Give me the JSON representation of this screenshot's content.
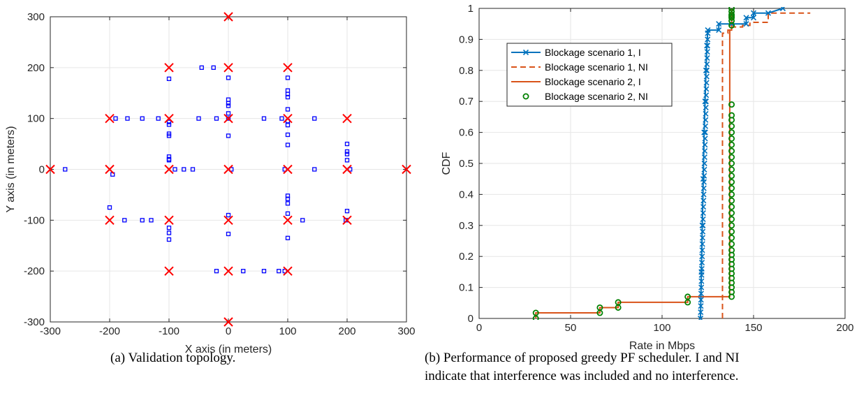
{
  "captions": {
    "a": "(a) Validation topology.",
    "b_line1": "(b) Performance of proposed greedy PF scheduler. I and NI",
    "b_line2": "indicate that interference was included and no interference."
  },
  "chart_data": [
    {
      "type": "scatter",
      "title": "",
      "xlabel": "X axis (in meters)",
      "ylabel": "Y axis (in meters)",
      "xlim": [
        -300,
        300
      ],
      "ylim": [
        -300,
        300
      ],
      "xticks": [
        -300,
        -200,
        -100,
        0,
        100,
        200,
        300
      ],
      "yticks": [
        -300,
        -200,
        -100,
        0,
        100,
        200,
        300
      ],
      "grid": true,
      "series": [
        {
          "marker": "x",
          "color": "#ff0000",
          "points": [
            [
              0,
              300
            ],
            [
              -100,
              200
            ],
            [
              0,
              200
            ],
            [
              100,
              200
            ],
            [
              -200,
              100
            ],
            [
              -100,
              100
            ],
            [
              0,
              100
            ],
            [
              100,
              100
            ],
            [
              200,
              100
            ],
            [
              -300,
              0
            ],
            [
              -200,
              0
            ],
            [
              -100,
              0
            ],
            [
              0,
              0
            ],
            [
              100,
              0
            ],
            [
              200,
              0
            ],
            [
              300,
              0
            ],
            [
              -200,
              -100
            ],
            [
              -100,
              -100
            ],
            [
              0,
              -100
            ],
            [
              100,
              -100
            ],
            [
              200,
              -100
            ],
            [
              -100,
              -200
            ],
            [
              0,
              -200
            ],
            [
              100,
              -200
            ],
            [
              0,
              -300
            ]
          ]
        },
        {
          "marker": "square",
          "color": "#0000ff",
          "points": [
            [
              -45,
              200
            ],
            [
              -25,
              200
            ],
            [
              -100,
              178
            ],
            [
              0,
              180
            ],
            [
              100,
              180
            ],
            [
              100,
              155
            ],
            [
              100,
              148
            ],
            [
              100,
              142
            ],
            [
              0,
              137
            ],
            [
              0,
              130
            ],
            [
              0,
              125
            ],
            [
              -190,
              100
            ],
            [
              -170,
              100
            ],
            [
              -145,
              100
            ],
            [
              -118,
              100
            ],
            [
              -50,
              100
            ],
            [
              -20,
              100
            ],
            [
              60,
              100
            ],
            [
              90,
              100
            ],
            [
              145,
              100
            ],
            [
              -100,
              93
            ],
            [
              -100,
              88
            ],
            [
              -100,
              70
            ],
            [
              -100,
              66
            ],
            [
              100,
              118
            ],
            [
              100,
              95
            ],
            [
              100,
              87
            ],
            [
              100,
              68
            ],
            [
              100,
              48
            ],
            [
              0,
              110
            ],
            [
              0,
              100
            ],
            [
              0,
              66
            ],
            [
              -100,
              25
            ],
            [
              -100,
              20
            ],
            [
              -100,
              18
            ],
            [
              200,
              50
            ],
            [
              200,
              35
            ],
            [
              200,
              30
            ],
            [
              200,
              18
            ],
            [
              -275,
              0
            ],
            [
              -195,
              -10
            ],
            [
              -90,
              0
            ],
            [
              -75,
              0
            ],
            [
              -60,
              0
            ],
            [
              5,
              0
            ],
            [
              95,
              0
            ],
            [
              145,
              0
            ],
            [
              205,
              0
            ],
            [
              -200,
              -75
            ],
            [
              -175,
              -100
            ],
            [
              -145,
              -100
            ],
            [
              -130,
              -100
            ],
            [
              -100,
              -115
            ],
            [
              -100,
              -125
            ],
            [
              -100,
              -138
            ],
            [
              0,
              -90
            ],
            [
              0,
              -127
            ],
            [
              100,
              -52
            ],
            [
              100,
              -58
            ],
            [
              100,
              -67
            ],
            [
              100,
              -87
            ],
            [
              125,
              -100
            ],
            [
              100,
              -135
            ],
            [
              200,
              -82
            ],
            [
              198,
              -100
            ],
            [
              -20,
              -200
            ],
            [
              25,
              -200
            ],
            [
              60,
              -200
            ],
            [
              85,
              -200
            ],
            [
              95,
              -200
            ]
          ]
        }
      ]
    },
    {
      "type": "line",
      "title": "",
      "xlabel": "Rate in Mbps",
      "ylabel": "CDF",
      "xlim": [
        0,
        200
      ],
      "ylim": [
        0,
        1
      ],
      "xticks": [
        0,
        50,
        100,
        150,
        200
      ],
      "yticks": [
        0,
        0.1,
        0.2,
        0.3,
        0.4,
        0.5,
        0.6,
        0.7,
        0.8,
        0.9,
        1
      ],
      "grid": true,
      "legend_position": "top-left",
      "series": [
        {
          "name": "Blockage scenario 1, I",
          "color": "#0072bd",
          "style": "solid-x",
          "x": [
            121,
            121.5,
            122,
            122.5,
            123,
            123.5,
            124,
            124.5,
            125,
            131,
            131,
            138,
            138,
            146,
            146,
            150,
            150,
            158,
            166
          ],
          "y": [
            0,
            0.15,
            0.3,
            0.45,
            0.6,
            0.7,
            0.8,
            0.88,
            0.93,
            0.93,
            0.95,
            0.95,
            0.95,
            0.95,
            0.97,
            0.97,
            0.985,
            0.985,
            1.0
          ]
        },
        {
          "name": "Blockage scenario 1, NI",
          "color": "#d95319",
          "style": "dashed",
          "x": [
            133,
            133,
            136,
            136,
            138,
            138,
            144,
            144,
            148,
            148,
            158,
            158,
            181
          ],
          "y": [
            0,
            0.92,
            0.92,
            0.93,
            0.93,
            0.94,
            0.94,
            0.945,
            0.945,
            0.955,
            0.955,
            0.985,
            0.985
          ]
        },
        {
          "name": "Blockage scenario 2, I",
          "color": "#d95319",
          "style": "solid",
          "x": [
            31,
            31,
            66,
            66,
            76,
            76,
            114,
            114,
            137,
            137,
            138,
            138
          ],
          "y": [
            0,
            0.018,
            0.018,
            0.035,
            0.035,
            0.052,
            0.052,
            0.07,
            0.07,
            0.93,
            0.93,
            1.0
          ]
        },
        {
          "name": "Blockage scenario 2, NI",
          "color": "#008000",
          "style": "markers-o",
          "x": [
            31,
            31,
            66,
            66,
            76,
            76,
            114,
            114,
            138,
            138,
            138,
            138,
            138,
            138,
            138,
            138,
            138,
            138,
            138,
            138,
            138,
            138,
            138,
            138,
            138,
            138,
            138,
            138,
            138,
            138,
            138,
            138,
            138,
            138,
            138,
            138,
            138,
            138,
            138,
            138,
            138,
            138,
            138,
            138,
            138,
            138,
            138,
            138,
            138
          ],
          "y": [
            0,
            0.018,
            0.018,
            0.035,
            0.035,
            0.052,
            0.052,
            0.07,
            0.07,
            0.085,
            0.1,
            0.115,
            0.13,
            0.145,
            0.16,
            0.175,
            0.19,
            0.205,
            0.22,
            0.24,
            0.26,
            0.28,
            0.3,
            0.32,
            0.34,
            0.36,
            0.38,
            0.4,
            0.42,
            0.44,
            0.46,
            0.48,
            0.5,
            0.52,
            0.54,
            0.56,
            0.58,
            0.6,
            0.62,
            0.64,
            0.655,
            0.69,
            0.945,
            0.96,
            0.97,
            0.975,
            0.98,
            0.99,
            1.0
          ]
        }
      ]
    }
  ]
}
